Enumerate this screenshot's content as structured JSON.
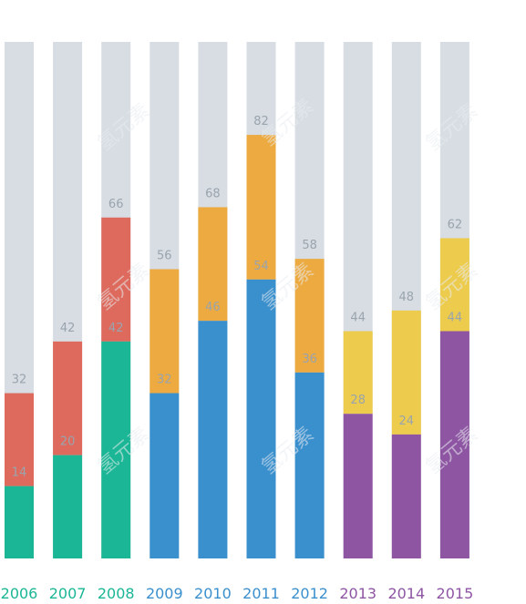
{
  "chart_data": {
    "type": "bar",
    "categories": [
      "2006",
      "2007",
      "2008",
      "2009",
      "2010",
      "2011",
      "2012",
      "2013",
      "2014",
      "2015"
    ],
    "series": [
      {
        "values": [
          14,
          20,
          42,
          32,
          46,
          54,
          36,
          28,
          24,
          44
        ]
      },
      {
        "values": [
          32,
          42,
          66,
          56,
          68,
          82,
          58,
          44,
          48,
          62
        ]
      }
    ],
    "ylim": [
      0,
      100
    ],
    "grid": false,
    "colors": {
      "track": "#d7dde3",
      "bottom": [
        "#1bb695",
        "#1bb695",
        "#1bb695",
        "#3a8fcd",
        "#3a8fcd",
        "#3a8fcd",
        "#3a8fcd",
        "#8e55a3",
        "#8e55a3",
        "#8e55a3"
      ],
      "top": [
        "#dd6a5d",
        "#dd6a5d",
        "#dd6a5d",
        "#ecaa40",
        "#ecaa40",
        "#ecaa40",
        "#ecaa40",
        "#eccb4d",
        "#eccb4d",
        "#eccb4d"
      ],
      "year": [
        "#1bb695",
        "#1bb695",
        "#1bb695",
        "#3a8fcd",
        "#3a8fcd",
        "#3a8fcd",
        "#3a8fcd",
        "#8e55a3",
        "#8e55a3",
        "#8e55a3"
      ]
    }
  },
  "watermark": "氢元素"
}
